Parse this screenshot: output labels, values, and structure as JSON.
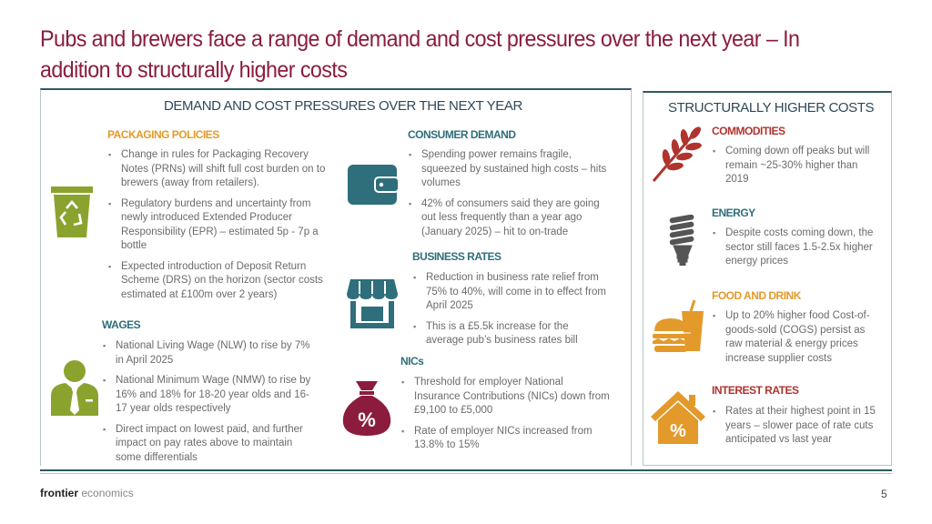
{
  "title": "Pubs and brewers face a range of demand and cost pressures over the next year – In addition to structurally higher costs",
  "left_panel": {
    "heading": "DEMAND AND COST PRESSURES OVER THE NEXT YEAR",
    "packaging": {
      "heading": "PACKAGING POLICIES",
      "bullets": [
        "Change in rules for Packaging Recovery Notes (PRNs) will shift full cost burden on to brewers (away from retailers).",
        "Regulatory burdens and uncertainty from newly introduced Extended Producer Responsibility (EPR) – estimated 5p - 7p a bottle",
        "Expected introduction of Deposit Return Scheme (DRS) on the horizon (sector costs estimated at £100m over 2 years)"
      ]
    },
    "wages": {
      "heading": "WAGES",
      "bullets": [
        "National Living Wage (NLW) to rise by 7% in April 2025",
        "National Minimum Wage (NMW) to rise by 16% and 18% for 18-20 year olds and 16-17 year olds respectively",
        "Direct impact on lowest paid, and further impact on pay rates above to maintain some differentials"
      ]
    },
    "consumer": {
      "heading": "CONSUMER DEMAND",
      "bullets": [
        "Spending power remains fragile, squeezed by sustained high costs – hits volumes",
        "42% of consumers said they are going out less frequently than a year ago (January 2025) – hit to on-trade"
      ]
    },
    "business_rates": {
      "heading": "BUSINESS RATES",
      "bullets": [
        "Reduction in business rate relief from 75% to 40%, will come in to effect from April 2025",
        "This is a £5.5k increase for the average pub’s business rates bill"
      ]
    },
    "nics": {
      "heading": "NICs",
      "bullets": [
        "Threshold for employer National Insurance Contributions (NICs) down from £9,100 to £5,000",
        "Rate of employer NICs increased from 13.8% to 15%"
      ]
    }
  },
  "right_panel": {
    "heading": "STRUCTURALLY HIGHER COSTS",
    "commodities": {
      "heading": "COMMODITIES",
      "bullets": [
        "Coming down off peaks but will remain ~25-30% higher than 2019"
      ]
    },
    "energy": {
      "heading": "ENERGY",
      "bullets": [
        "Despite costs coming down, the sector still faces 1.5-2.5x higher energy prices"
      ]
    },
    "food": {
      "heading": "FOOD AND DRINK",
      "bullets": [
        "Up to 20% higher food Cost-of-goods-sold (COGS) persist as raw material & energy prices increase supplier costs"
      ]
    },
    "interest": {
      "heading": "INTEREST RATES",
      "bullets": [
        "Rates at their highest point in 15 years – slower pace of rate cuts anticipated vs last year"
      ]
    }
  },
  "icons": {
    "packaging": "recycling-bin-icon",
    "wages": "worker-icon",
    "consumer": "wallet-icon",
    "business_rates": "shop-icon",
    "nics": "money-bag-percent-icon",
    "commodities": "wheat-icon",
    "energy": "energy-bulb-icon",
    "food": "burger-drink-icon",
    "interest": "house-percent-icon"
  },
  "footer": {
    "brand_bold": "frontier",
    "brand_light": "economics",
    "page": "5"
  },
  "colors": {
    "title": "#8b1c3d",
    "orange": "#e39a2a",
    "teal": "#2f6e7b",
    "green": "#8aa32e",
    "gray": "#6b6b6b",
    "red": "#b0342e"
  }
}
